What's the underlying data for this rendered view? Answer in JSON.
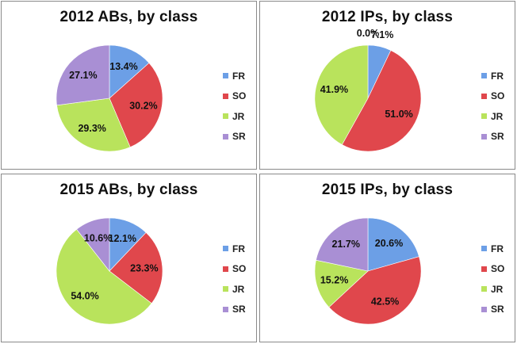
{
  "colors": {
    "FR": "#6c9fe6",
    "SO": "#e0474c",
    "JR": "#b9e35c",
    "SR": "#a98fd4"
  },
  "chart_data": [
    {
      "type": "pie",
      "title": "2012 ABs, by class",
      "categories": [
        "FR",
        "SO",
        "JR",
        "SR"
      ],
      "values": [
        13.4,
        30.2,
        29.3,
        27.1
      ],
      "labels": [
        "13.4%",
        "30.2%",
        "29.3%",
        "27.1%"
      ],
      "legend": "right"
    },
    {
      "type": "pie",
      "title": "2012 IPs, by class",
      "categories": [
        "FR",
        "SO",
        "JR",
        "SR"
      ],
      "values": [
        7.1,
        51.0,
        41.9,
        0.0
      ],
      "labels": [
        "7.1%",
        "51.0%",
        "41.9%",
        "0.0%"
      ],
      "legend": "right"
    },
    {
      "type": "pie",
      "title": "2015 ABs, by class",
      "categories": [
        "FR",
        "SO",
        "JR",
        "SR"
      ],
      "values": [
        12.1,
        23.3,
        54.0,
        10.6
      ],
      "labels": [
        "12.1%",
        "23.3%",
        "54.0%",
        "10.6%"
      ],
      "legend": "right"
    },
    {
      "type": "pie",
      "title": "2015 IPs, by class",
      "categories": [
        "FR",
        "SO",
        "JR",
        "SR"
      ],
      "values": [
        20.6,
        42.5,
        15.2,
        21.7
      ],
      "labels": [
        "20.6%",
        "42.5%",
        "15.2%",
        "21.7%"
      ],
      "legend": "right"
    }
  ]
}
